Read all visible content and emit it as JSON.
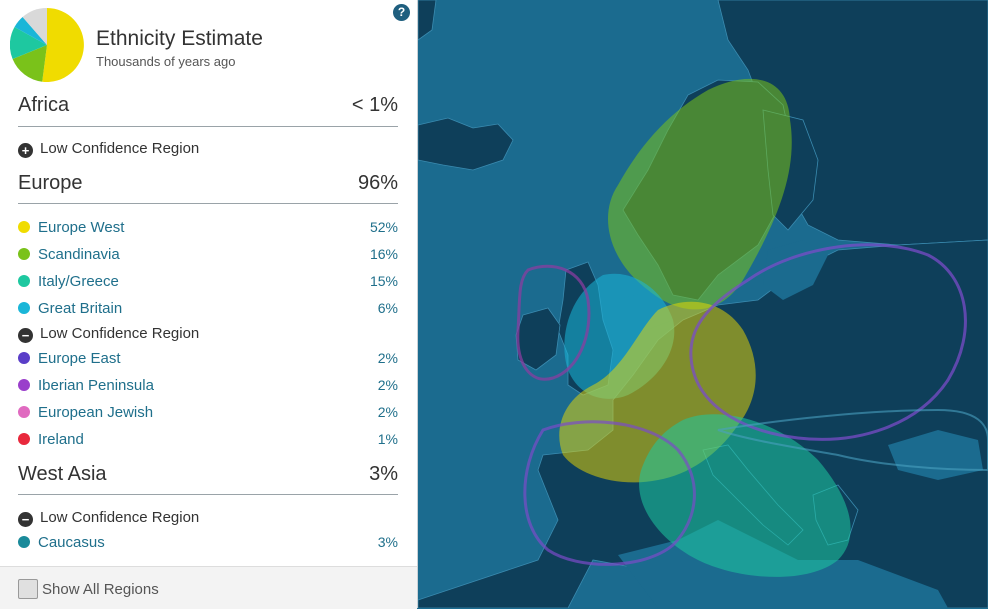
{
  "header": {
    "title": "Ethnicity Estimate",
    "subtitle": "Thousands of years ago",
    "help": "?"
  },
  "sections": [
    {
      "label": "Africa",
      "value": "< 1%"
    },
    {
      "label": "Europe",
      "value": "96%"
    },
    {
      "label": "West Asia",
      "value": "3%"
    }
  ],
  "low_confidence_label": "Low Confidence Region",
  "regions": [
    {
      "label": "Europe West",
      "value": "52%",
      "color": "#f0dc00"
    },
    {
      "label": "Scandinavia",
      "value": "16%",
      "color": "#7ac21a"
    },
    {
      "label": "Italy/Greece",
      "value": "15%",
      "color": "#1ec8a0"
    },
    {
      "label": "Great Britain",
      "value": "6%",
      "color": "#1ab6d8"
    },
    {
      "label": "Europe East",
      "value": "2%",
      "color": "#5a3ec8"
    },
    {
      "label": "Iberian Peninsula",
      "value": "2%",
      "color": "#9a3ecb"
    },
    {
      "label": "European Jewish",
      "value": "2%",
      "color": "#e06ac0"
    },
    {
      "label": "Ireland",
      "value": "1%",
      "color": "#e8283c"
    },
    {
      "label": "Caucasus",
      "value": "3%",
      "color": "#1a8a9a"
    }
  ],
  "footer": {
    "show_all": "Show All Regions"
  }
}
